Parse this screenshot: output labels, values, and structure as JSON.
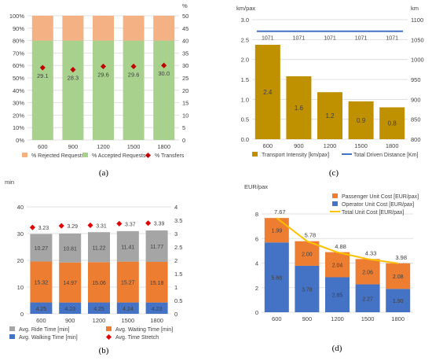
{
  "chart_data": [
    {
      "id": "a",
      "type": "bar",
      "stacked": true,
      "caption": "(a)",
      "categories": [
        "600",
        "900",
        "1200",
        "1500",
        "1800"
      ],
      "y_left_ticks": [
        "0%",
        "10%",
        "20%",
        "30%",
        "40%",
        "50%",
        "60%",
        "70%",
        "80%",
        "90%",
        "100%"
      ],
      "y_right_ticks": [
        "0",
        "5",
        "10",
        "15",
        "20",
        "25",
        "30",
        "35",
        "40",
        "45",
        "50"
      ],
      "y_right_unit": "%",
      "ylim_left": [
        0,
        100
      ],
      "ylim_right": [
        0,
        50
      ],
      "grid": true,
      "legend_position": "bottom",
      "series": [
        {
          "name": "% Accepted Requests",
          "axis": "left",
          "color": "#a9d18e",
          "values": [
            80,
            80,
            80,
            80,
            80
          ]
        },
        {
          "name": "% Rejected Requests",
          "axis": "left",
          "color": "#f4b183",
          "values": [
            20,
            20,
            20,
            20,
            20
          ]
        },
        {
          "name": "% Transfers",
          "axis": "right",
          "kind": "marker",
          "color": "#c00000",
          "values": [
            29.1,
            28.3,
            29.6,
            29.6,
            30.0
          ],
          "labels": [
            "29.1",
            "28.3",
            "29.6",
            "29.6",
            "30.0"
          ]
        }
      ],
      "legend": [
        "% Rejected Requests",
        "% Accepted Requests",
        "% Transfers"
      ]
    },
    {
      "id": "c",
      "type": "bar",
      "caption": "(c)",
      "categories": [
        "600",
        "900",
        "1200",
        "1500",
        "1800"
      ],
      "y_left_unit": "km/pax",
      "y_right_unit": "km",
      "y_left_ticks": [
        "0.0",
        "0.5",
        "1.0",
        "1.5",
        "2.0",
        "2.5",
        "3.0"
      ],
      "y_right_ticks": [
        "800",
        "850",
        "900",
        "950",
        "1000",
        "1050",
        "1100"
      ],
      "ylim_left": [
        0,
        3.0
      ],
      "ylim_right": [
        800,
        1100
      ],
      "grid": true,
      "legend_position": "bottom",
      "series": [
        {
          "name": "Transport Intensity  [km/pax]",
          "axis": "left",
          "color": "#bf9000",
          "values": [
            2.37,
            1.58,
            1.18,
            0.95,
            0.8
          ],
          "labels": [
            "2.4",
            "1.6",
            "1.2",
            "0.9",
            "0.8"
          ]
        },
        {
          "name": "Total Driven Distance [Km]",
          "axis": "right",
          "kind": "line",
          "color": "#4472c4",
          "values": [
            1071,
            1071,
            1071,
            1071,
            1071
          ],
          "labels": [
            "1071",
            "1071",
            "1071",
            "1071",
            "1071"
          ]
        }
      ]
    },
    {
      "id": "b",
      "type": "bar",
      "stacked": true,
      "caption": "(b)",
      "categories": [
        "600",
        "900",
        "1200",
        "1500",
        "1800"
      ],
      "y_left_unit": "min",
      "y_left_ticks": [
        "0",
        "10",
        "20",
        "30",
        "40"
      ],
      "y_right_ticks": [
        "0",
        "0.5",
        "1",
        "1.5",
        "2",
        "2.5",
        "3",
        "3.5",
        "4"
      ],
      "ylim_left": [
        0,
        40
      ],
      "ylim_right": [
        0,
        4
      ],
      "grid": true,
      "legend_position": "bottom",
      "series": [
        {
          "name": "Avg. Walking Time [min]",
          "axis": "left",
          "color": "#4472c4",
          "values": [
            4.25,
            4.23,
            4.25,
            4.24,
            4.23
          ],
          "labels": [
            "4.25",
            "4.23",
            "4.25",
            "4.24",
            "4.23"
          ]
        },
        {
          "name": "Avg. Waiting Time [min]",
          "axis": "left",
          "color": "#ed7d31",
          "values": [
            15.32,
            14.97,
            15.06,
            15.27,
            15.18
          ],
          "labels": [
            "15.32",
            "14.97",
            "15.06",
            "15.27",
            "15.18"
          ]
        },
        {
          "name": "Avg. Ride Time [min]",
          "axis": "left",
          "color": "#a5a5a5",
          "values": [
            10.27,
            10.81,
            11.22,
            11.41,
            11.77
          ],
          "labels": [
            "10.27",
            "10.81",
            "11.22",
            "11.41",
            "11.77"
          ]
        },
        {
          "name": "Avg. Time Stretch",
          "axis": "right",
          "kind": "marker",
          "color": "#e00000",
          "values": [
            3.23,
            3.29,
            3.31,
            3.37,
            3.39
          ],
          "labels": [
            "3.23",
            "3.29",
            "3.31",
            "3.37",
            "3.39"
          ]
        }
      ],
      "legend": [
        "Avg. Ride Time [min]",
        "Avg. Waiting Time [min]",
        "Avg. Walking Time [min]",
        "Avg. Time Stretch"
      ]
    },
    {
      "id": "d",
      "type": "bar",
      "stacked": true,
      "caption": "(d)",
      "categories": [
        "600",
        "900",
        "1200",
        "1500",
        "1800"
      ],
      "y_left_unit": "EUR/pax",
      "y_left_ticks": [
        "0",
        "2",
        "4",
        "6",
        "8"
      ],
      "ylim_left": [
        0,
        8
      ],
      "grid": true,
      "legend_position": "top-right",
      "series": [
        {
          "name": "Operator Unit Cost [EUR/pax]",
          "color": "#4472c4",
          "values": [
            5.68,
            3.78,
            2.85,
            2.27,
            1.9
          ],
          "labels": [
            "5.68",
            "3.78",
            "2.85",
            "2.27",
            "1.90"
          ]
        },
        {
          "name": "Passenger Unit Cost [EUR/pax]",
          "color": "#ed7d31",
          "values": [
            1.99,
            2.0,
            2.04,
            2.06,
            2.08
          ],
          "labels": [
            "1.99",
            "2.00",
            "2.04",
            "2.06",
            "2.08"
          ]
        },
        {
          "name": "Total Unit Cost [EUR/pax]",
          "kind": "line",
          "color": "#ffc000",
          "values": [
            7.67,
            5.78,
            4.88,
            4.33,
            3.98
          ],
          "labels": [
            "7.67",
            "5.78",
            "4.88",
            "4.33",
            "3.98"
          ]
        }
      ],
      "legend": [
        "Passenger Unit Cost [EUR/pax]",
        "Operator Unit Cost [EUR/pax]",
        "Total Unit Cost [EUR/pax]"
      ]
    }
  ]
}
